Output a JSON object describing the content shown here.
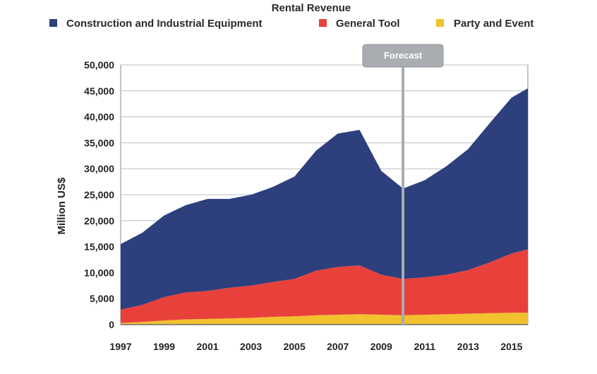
{
  "chart_data": {
    "type": "area",
    "stacked": true,
    "title": "Rental Revenue",
    "ylabel": "Million US$",
    "xlabel": "",
    "xlim": [
      1997,
      2015.75
    ],
    "ylim": [
      0,
      50000
    ],
    "y_ticks": [
      "0",
      "5,000",
      "10,000",
      "15,000",
      "20,000",
      "25,000",
      "30,000",
      "35,000",
      "40,000",
      "45,000",
      "50,000"
    ],
    "y_tick_values": [
      0,
      5000,
      10000,
      15000,
      20000,
      25000,
      30000,
      35000,
      40000,
      45000,
      50000
    ],
    "x_ticks": [
      "1997",
      "1999",
      "2001",
      "2003",
      "2005",
      "2007",
      "2009",
      "2011",
      "2013",
      "2015"
    ],
    "x_tick_values": [
      1997,
      1999,
      2001,
      2003,
      2005,
      2007,
      2009,
      2011,
      2013,
      2015
    ],
    "grid": true,
    "legend_position": "top",
    "forecast_label": "Forecast",
    "forecast_x": 2010,
    "x": [
      1997,
      1998,
      1999,
      2000,
      2001,
      2002,
      2003,
      2004,
      2005,
      2006,
      2007,
      2008,
      2009,
      2010,
      2011,
      2012,
      2013,
      2014,
      2015,
      2015.75
    ],
    "series": [
      {
        "name": "Party and Event",
        "color": "#f2c12e",
        "values": [
          300,
          500,
          800,
          1000,
          1100,
          1200,
          1300,
          1500,
          1600,
          1800,
          1900,
          2000,
          1900,
          1800,
          1900,
          2000,
          2100,
          2200,
          2300,
          2300
        ]
      },
      {
        "name": "General Tool",
        "color": "#e8413c",
        "values": [
          2600,
          3300,
          4500,
          5200,
          5400,
          5900,
          6200,
          6700,
          7200,
          8600,
          9200,
          9400,
          7700,
          7000,
          7200,
          7600,
          8400,
          9800,
          11400,
          12200
        ]
      },
      {
        "name": "Construction and Industrial Equipment",
        "color": "#2d3f7c",
        "values": [
          12600,
          13900,
          15700,
          16800,
          17700,
          17100,
          17500,
          18300,
          19700,
          23100,
          25700,
          26100,
          20000,
          17400,
          18700,
          20900,
          23300,
          26800,
          30000,
          31000
        ]
      }
    ]
  }
}
